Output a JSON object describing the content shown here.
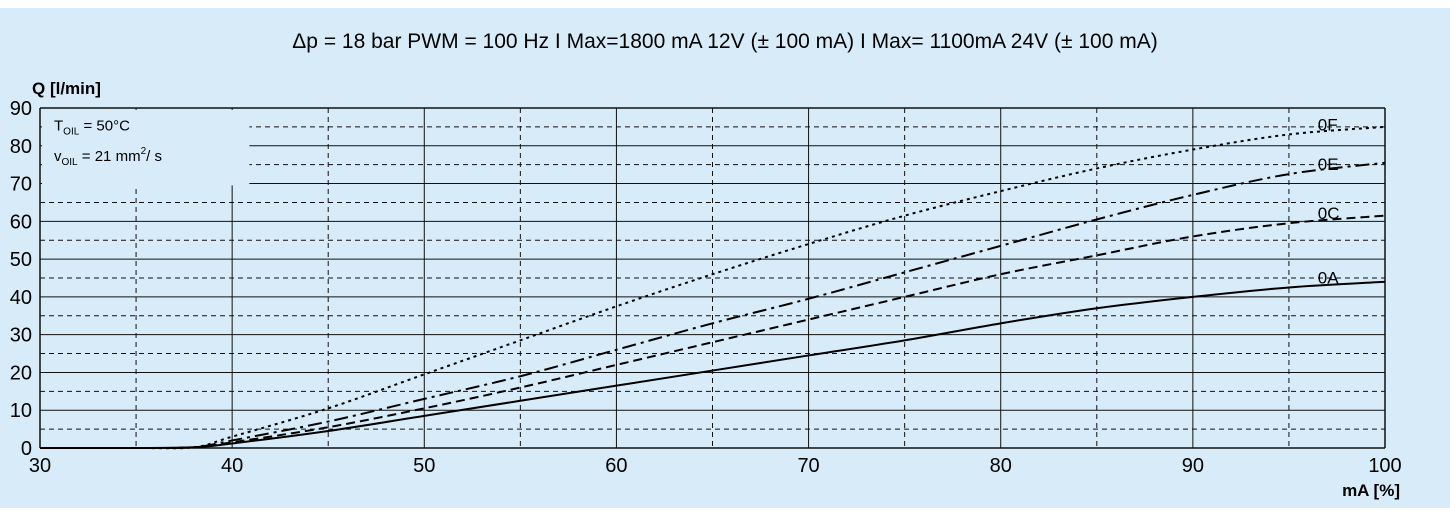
{
  "chart_data": {
    "type": "line",
    "title": "Δp = 18 bar   PWM = 100 Hz     I Max=1800 mA 12V (± 100 mA)     I Max= 1100mA 24V (± 100 mA)",
    "xlabel": "mA [%]",
    "ylabel": "Q [l/min]",
    "xlim": [
      30,
      100
    ],
    "ylim": [
      0,
      90
    ],
    "xticks": [
      "30",
      "40",
      "50",
      "60",
      "70",
      "80",
      "90",
      "100"
    ],
    "yticks": [
      "0",
      "10",
      "20",
      "30",
      "40",
      "50",
      "60",
      "70",
      "80",
      "90"
    ],
    "grid": true,
    "conditions": {
      "temp_main": "T",
      "temp_sub": "OIL",
      "temp_value": " = 50°C",
      "visc_main": "v",
      "visc_sub": "OIL",
      "visc_value": " = 21 mm",
      "visc_sup": "2",
      "visc_unit": "/ s"
    },
    "series": [
      {
        "name": "0A",
        "style": "solid",
        "x": [
          30,
          35,
          38,
          40,
          45,
          50,
          55,
          60,
          65,
          70,
          75,
          80,
          85,
          90,
          95,
          100
        ],
        "y": [
          0,
          0,
          0.2,
          1.2,
          4.5,
          8.5,
          12.5,
          16.5,
          20.5,
          24.5,
          28.5,
          33,
          37,
          40,
          42.5,
          44
        ]
      },
      {
        "name": "0C",
        "style": "dashed",
        "x": [
          30,
          35,
          38,
          40,
          45,
          50,
          55,
          60,
          65,
          70,
          75,
          80,
          85,
          90,
          95,
          100
        ],
        "y": [
          0,
          0,
          0.2,
          1.5,
          5.5,
          10.5,
          16,
          22,
          28,
          34,
          40,
          46,
          51,
          56,
          59.5,
          61.5
        ]
      },
      {
        "name": "0E",
        "style": "dashdot",
        "x": [
          30,
          35,
          38,
          40,
          45,
          50,
          55,
          60,
          65,
          70,
          75,
          80,
          85,
          90,
          95,
          100
        ],
        "y": [
          0,
          0,
          0.2,
          2,
          7,
          13,
          19,
          26,
          33,
          39.5,
          46.5,
          53.5,
          60.5,
          67,
          72.5,
          75.5
        ]
      },
      {
        "name": "0F",
        "style": "dotted",
        "x": [
          30,
          35,
          38,
          40,
          45,
          50,
          55,
          60,
          65,
          70,
          75,
          80,
          85,
          90,
          95,
          100
        ],
        "y": [
          0,
          0,
          0.2,
          3,
          10.5,
          19.5,
          28.5,
          37.5,
          46,
          54,
          61.5,
          68,
          74,
          79,
          83,
          85
        ]
      }
    ]
  }
}
